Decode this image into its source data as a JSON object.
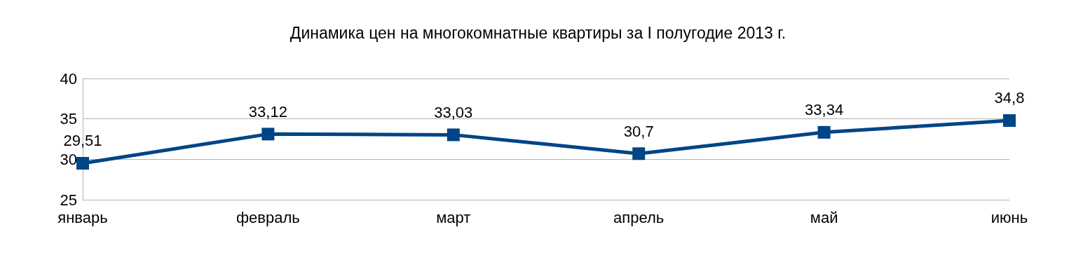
{
  "chart_data": {
    "type": "line",
    "title": "Динамика цен на многокомнатные квартиры за I полугодие 2013 г.",
    "categories": [
      "январь",
      "февраль",
      "март",
      "апрель",
      "май",
      "июнь"
    ],
    "series": [
      {
        "color": "#004586",
        "values": [
          29.51,
          33.12,
          33.03,
          30.7,
          33.34,
          34.8
        ],
        "value_labels": [
          "29,51",
          "33,12",
          "33,03",
          "30,7",
          "33,34",
          "34,8"
        ]
      }
    ],
    "ylim": [
      25,
      40
    ],
    "yticks": [
      25,
      30,
      35,
      40
    ],
    "grid": "y",
    "marker": "square",
    "line_style": "solid"
  }
}
